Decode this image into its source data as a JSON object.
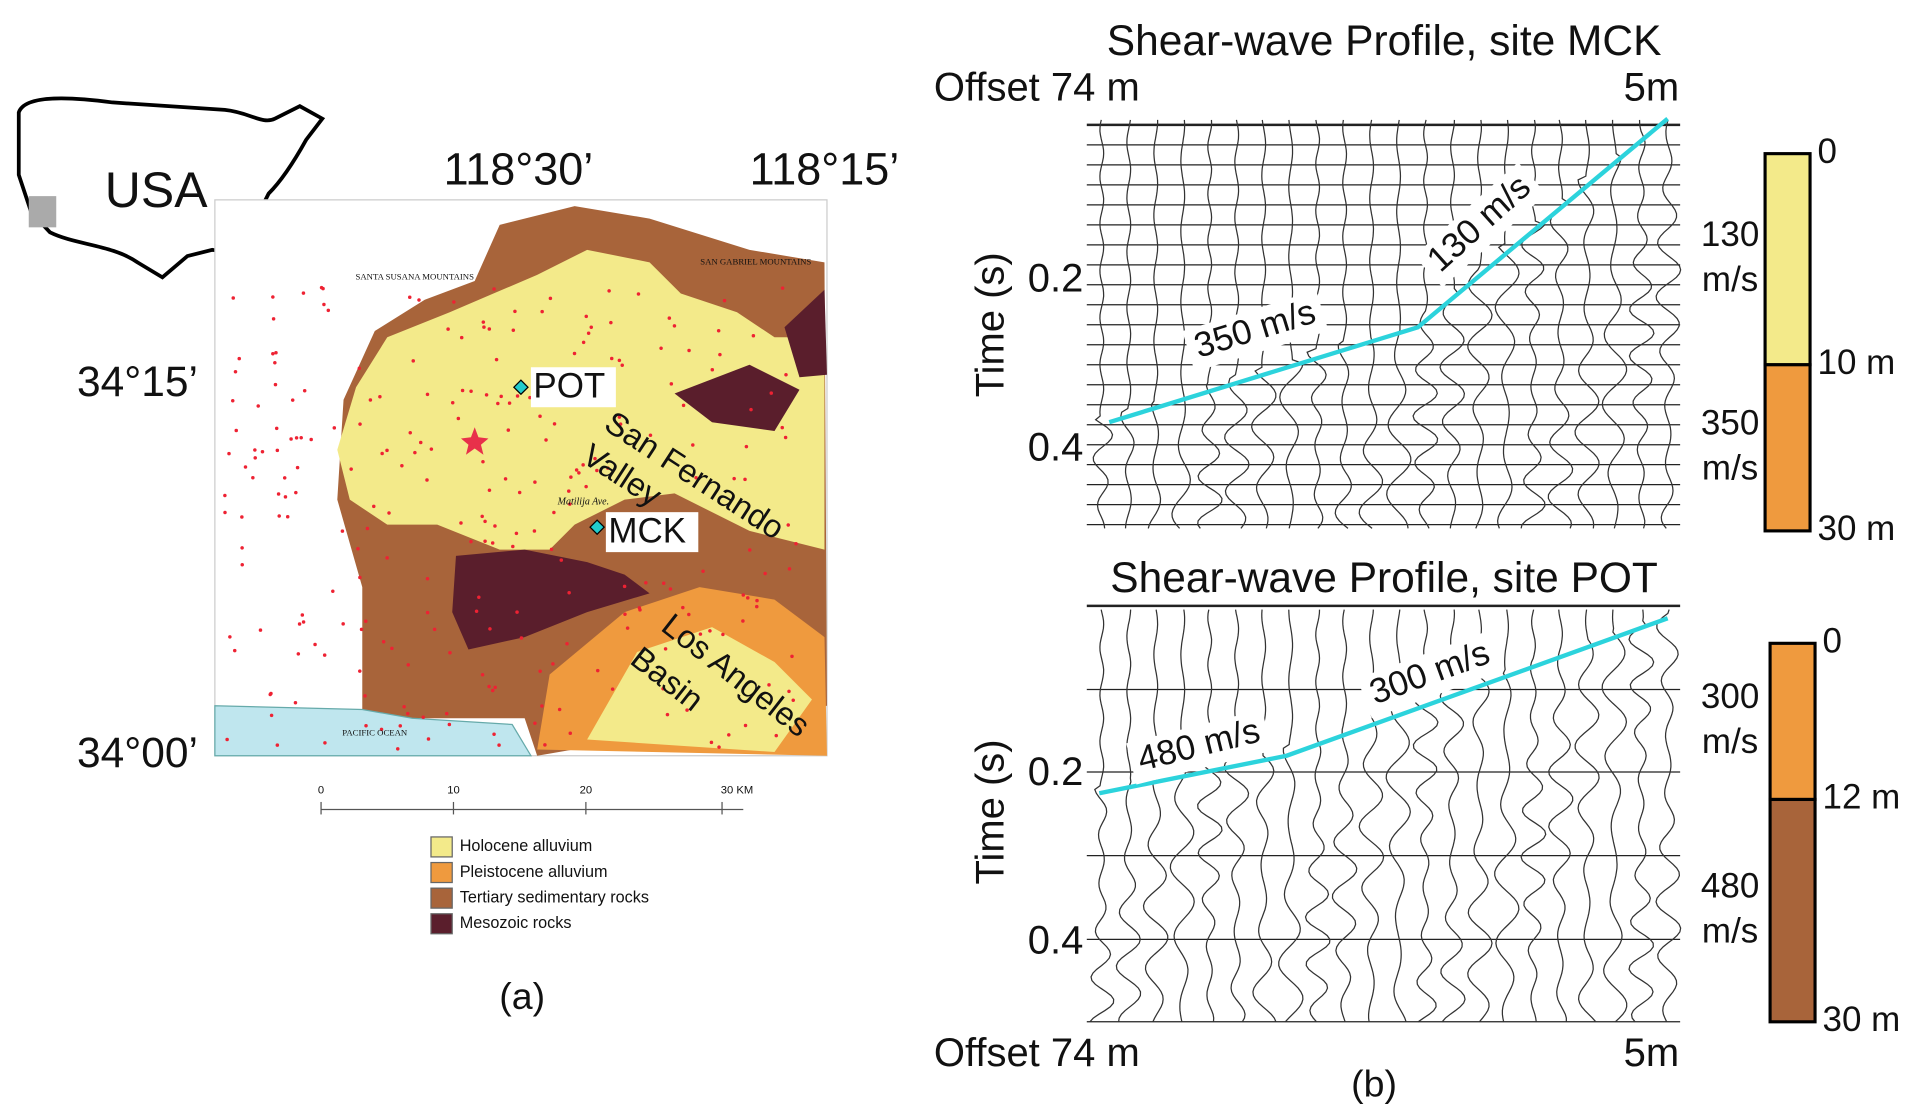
{
  "panel_a": {
    "inset_label": "USA",
    "lon_labels": [
      "118°30’",
      "118°15’"
    ],
    "lat_labels": [
      "34°15’",
      "34°00’"
    ],
    "map_labels": {
      "santa_susana": "SANTA SUSANA MOUNTAINS",
      "san_gabriel": "SAN GABRIEL MOUNTAINS",
      "ocean": "PACIFIC OCEAN",
      "street": "Matilija Ave."
    },
    "sites": [
      "POT",
      "MCK"
    ],
    "regions": [
      [
        "San Fernando",
        "Valley"
      ],
      [
        "Los Angeles",
        "Basin"
      ]
    ],
    "scale": [
      "0",
      "10",
      "20",
      "30 KM"
    ],
    "legend": [
      {
        "label": "Holocene alluvium",
        "color": "#f3ea8a"
      },
      {
        "label": "Pleistocene alluvium",
        "color": "#ef9a3e"
      },
      {
        "label": "Tertiary sedimentary rocks",
        "color": "#a8643a"
      },
      {
        "label": "Mesozoic rocks",
        "color": "#5a1e2c"
      }
    ],
    "caption": "(a)"
  },
  "panel_b": {
    "profiles": [
      {
        "title": "Shear-wave Profile, site MCK",
        "offset_left": "Offset 74 m",
        "offset_right": "5m",
        "y_label": "Time (s)",
        "yticks": [
          "0.2",
          "0.4"
        ],
        "velocity_labels": [
          "350 m/s",
          "130 m/s"
        ],
        "depths": [
          "0",
          "10 m",
          "30 m"
        ],
        "layers": [
          {
            "velocity": [
              "130",
              "m/s"
            ],
            "color": "#f3ea8a"
          },
          {
            "velocity": [
              "350",
              "m/s"
            ],
            "color": "#ef9a3e"
          }
        ]
      },
      {
        "title": "Shear-wave Profile, site POT",
        "offset_left": "Offset 74 m",
        "offset_right": "5m",
        "y_label": "Time (s)",
        "yticks": [
          "0.2",
          "0.4"
        ],
        "velocity_labels": [
          "480 m/s",
          "300 m/s"
        ],
        "depths": [
          "0",
          "12 m",
          "30 m"
        ],
        "layers": [
          {
            "velocity": [
              "300",
              "m/s"
            ],
            "color": "#ef9a3e"
          },
          {
            "velocity": [
              "480",
              "m/s"
            ],
            "color": "#a8643a"
          }
        ]
      }
    ],
    "caption": "(b)"
  }
}
